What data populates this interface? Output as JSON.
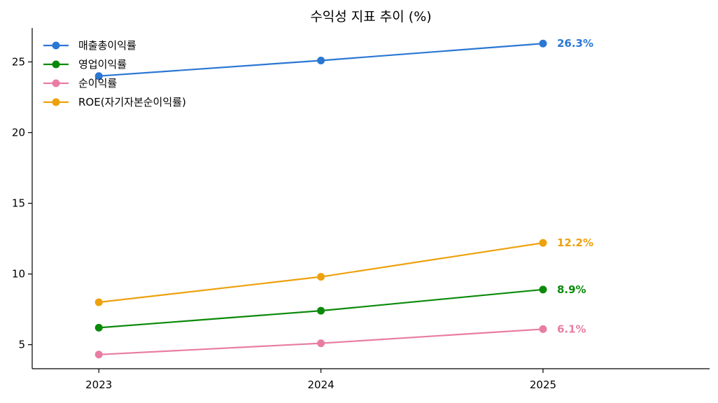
{
  "chart_data": {
    "type": "line",
    "title": "수익성 지표 추이 (%)",
    "xlabel": "",
    "ylabel": "",
    "categories": [
      "2023",
      "2024",
      "2025"
    ],
    "x_range": [
      2022.7,
      2025.75
    ],
    "ylim": [
      3.3,
      27.4
    ],
    "yticks": [
      5,
      10,
      15,
      20,
      25
    ],
    "grid": false,
    "legend_position": "top-left",
    "series": [
      {
        "name": "매출총이익률",
        "color": "#2a77d4",
        "values": [
          24.0,
          25.1,
          26.3
        ],
        "end_label": "26.3%"
      },
      {
        "name": "영업이익률",
        "color": "#0a8a0a",
        "values": [
          6.2,
          7.4,
          8.9
        ],
        "end_label": "8.9%"
      },
      {
        "name": "순이익률",
        "color": "#e87da3",
        "values": [
          4.3,
          5.1,
          6.1
        ],
        "end_label": "6.1%"
      },
      {
        "name": "ROE(자기자본순이익률)",
        "color": "#eda10c",
        "values": [
          8.0,
          9.8,
          12.2
        ],
        "end_label": "12.2%"
      }
    ]
  }
}
